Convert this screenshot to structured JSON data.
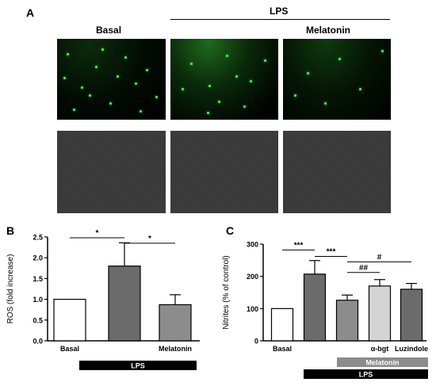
{
  "panel_a": {
    "letter": "A",
    "lps_header": "LPS",
    "col_basal": "Basal",
    "col_melatonin": "Melatonin"
  },
  "chart_data": [
    {
      "panel": "B",
      "type": "bar",
      "ylabel": "ROS (fold increase)",
      "ylim": [
        0,
        2.5
      ],
      "yticks": [
        "0.0",
        "0.5",
        "1.0",
        "1.5",
        "2.0",
        "2.5"
      ],
      "categories": [
        "Basal",
        "",
        "Melatonin"
      ],
      "values": [
        1.0,
        1.8,
        0.87
      ],
      "errors": [
        0,
        0.56,
        0.24
      ],
      "colors": [
        "#ffffff",
        "#6b6b6b",
        "#8c8c8c"
      ],
      "significance": [
        "*",
        "*"
      ],
      "treatment_bar": "LPS"
    },
    {
      "panel": "C",
      "type": "bar",
      "ylabel": "Nitrites (% of control)",
      "ylim": [
        0,
        300
      ],
      "yticks": [
        "0",
        "100",
        "200",
        "300"
      ],
      "categories": [
        "Basal",
        "",
        "",
        "α-bgt",
        "Luzindole"
      ],
      "values": [
        100,
        207,
        126,
        170,
        160
      ],
      "errors": [
        0,
        42,
        16,
        20,
        18
      ],
      "colors": [
        "#ffffff",
        "#6b6b6b",
        "#8c8c8c",
        "#d4d4d4",
        "#6b6b6b"
      ],
      "significance": [
        "***",
        "***",
        "##",
        "#"
      ],
      "treatment_bars": [
        "Melatonin",
        "LPS"
      ]
    }
  ]
}
